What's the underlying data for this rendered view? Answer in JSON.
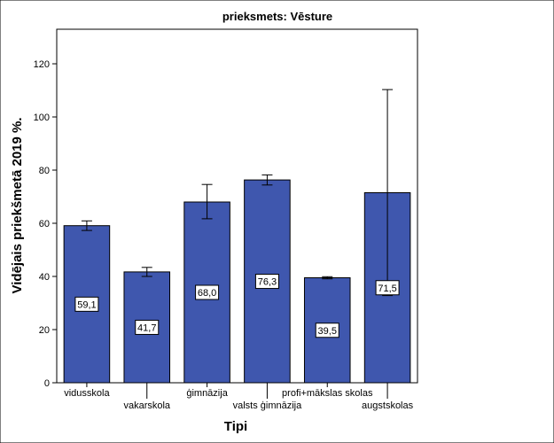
{
  "chart_data": {
    "type": "bar",
    "title": "prieksmets: Vēsture",
    "xlabel": "Tipi",
    "ylabel": "Vidējais priekšmetā 2019 %.",
    "ylim": [
      0,
      133
    ],
    "yticks": [
      "0",
      "20",
      "40",
      "60",
      "80",
      "100",
      "120"
    ],
    "grid": false,
    "categories": [
      "vidusskola",
      "vakarskola",
      "ģimnāzija",
      "valsts ģimnāzija",
      "profi+mākslas skolas",
      "augstskolas"
    ],
    "values": [
      59.1,
      41.7,
      68.0,
      76.3,
      39.5,
      71.5
    ],
    "value_labels": [
      "59,1",
      "41,7",
      "68,0",
      "76,3",
      "39,5",
      "71,5"
    ],
    "error_low": [
      57.3,
      40.0,
      61.7,
      74.4,
      39.1,
      32.8
    ],
    "error_high": [
      60.9,
      43.4,
      74.6,
      78.2,
      39.9,
      110.3
    ],
    "colors": {
      "bar_fill": "#3f57ae",
      "bar_stroke": "#000000",
      "frame": "#000000",
      "background": "#ffffff"
    }
  }
}
